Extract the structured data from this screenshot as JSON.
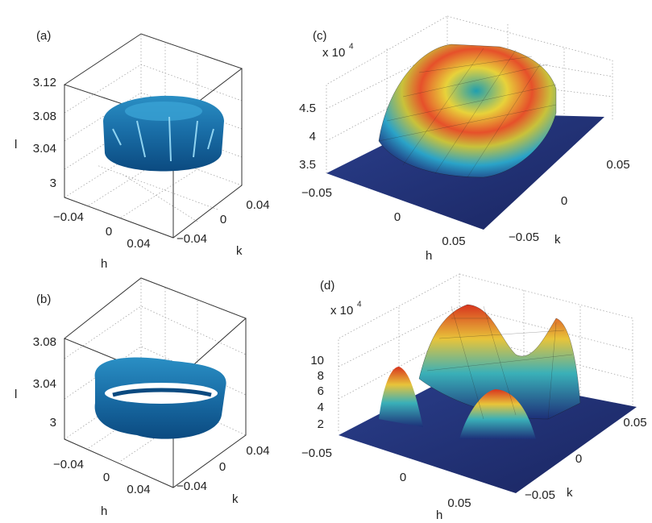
{
  "panels": [
    {
      "label": "(a)",
      "z_label": "l",
      "z_ticks": [
        "3.12",
        "3.08",
        "3.04",
        "3"
      ],
      "h_label": "h",
      "h_ticks": [
        "−0.04",
        "0",
        "0.04"
      ],
      "k_label": "k",
      "k_ticks": [
        "0.04",
        "0",
        "−0.04"
      ]
    },
    {
      "label": "(b)",
      "z_label": "l",
      "z_ticks": [
        "3.08",
        "3.04",
        "3"
      ],
      "h_label": "h",
      "h_ticks": [
        "−0.04",
        "0",
        "0.04"
      ],
      "k_label": "k",
      "k_ticks": [
        "0.04",
        "0",
        "−0.04"
      ]
    },
    {
      "label": "(c)",
      "scale": "x 10",
      "scale_exponent": "4",
      "z_ticks": [
        "4.5",
        "4",
        "3.5"
      ],
      "h_label": "h",
      "h_ticks": [
        "−0.05",
        "0",
        "0.05"
      ],
      "k_label": "k",
      "k_ticks": [
        "0.05",
        "0",
        "−0.05"
      ]
    },
    {
      "label": "(d)",
      "scale": "x 10",
      "scale_exponent": "4",
      "z_ticks": [
        "10",
        "8",
        "6",
        "4",
        "2"
      ],
      "h_label": "h",
      "h_ticks": [
        "−0.05",
        "0",
        "0.05"
      ],
      "k_label": "k",
      "k_ticks": [
        "0.05",
        "0",
        "−0.05"
      ]
    }
  ]
}
